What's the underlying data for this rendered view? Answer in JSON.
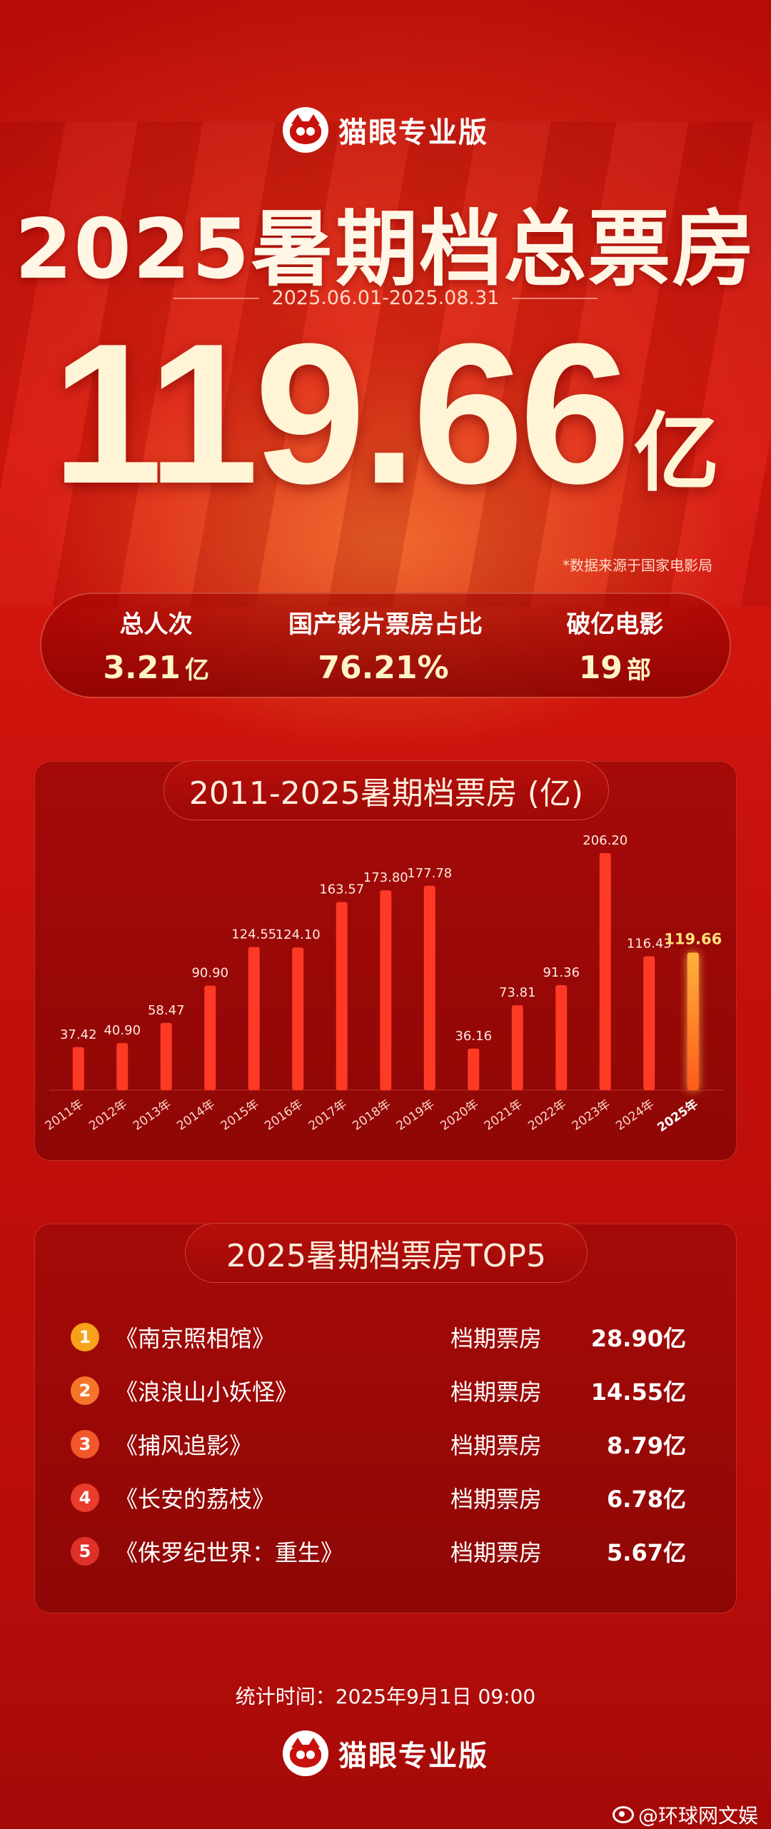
{
  "brand": {
    "name": "猫眼专业版",
    "logo_icon": "cat-logo-icon"
  },
  "header": {
    "title": "2025暑期档总票房",
    "date_range": "2025.06.01-2025.08.31",
    "total_value": "119.66",
    "total_unit": "亿",
    "source_note": "*数据来源于国家电影局"
  },
  "stats": [
    {
      "label": "总人次",
      "value": "3.21",
      "unit": "亿"
    },
    {
      "label": "国产影片票房占比",
      "value": "76.21%",
      "unit": ""
    },
    {
      "label": "破亿电影",
      "value": "19",
      "unit": "部"
    }
  ],
  "chart_data": {
    "type": "bar",
    "title": "2011-2025暑期档票房 (亿)",
    "categories": [
      "2011年",
      "2012年",
      "2013年",
      "2014年",
      "2015年",
      "2016年",
      "2017年",
      "2018年",
      "2019年",
      "2020年",
      "2021年",
      "2022年",
      "2023年",
      "2024年",
      "2025年"
    ],
    "values": [
      37.42,
      40.9,
      58.47,
      90.9,
      124.55,
      124.1,
      163.57,
      173.8,
      177.78,
      36.16,
      73.81,
      91.36,
      206.2,
      116.43,
      119.66
    ],
    "value_labels": [
      "37.42",
      "40.90",
      "58.47",
      "90.90",
      "124.55",
      "124.10",
      "163.57",
      "173.80",
      "177.78",
      "36.16",
      "73.81",
      "91.36",
      "206.20",
      "116.43",
      "119.66"
    ],
    "highlight_index": 14,
    "colors": {
      "bar": "#ff3a24",
      "highlight": "#ffb13b",
      "highlight_label": "#ffe27a"
    },
    "grid": false,
    "ylim": [
      0,
      206.2
    ]
  },
  "top5": {
    "title": "2025暑期档票房TOP5",
    "rows": [
      {
        "rank": "1",
        "title": "《南京照相馆》",
        "label": "档期票房",
        "value": "28.90亿",
        "color": "#f7a21b"
      },
      {
        "rank": "2",
        "title": "《浪浪山小妖怪》",
        "label": "档期票房",
        "value": "14.55亿",
        "color": "#f5762a"
      },
      {
        "rank": "3",
        "title": "《捕风追影》",
        "label": "档期票房",
        "value": "8.79亿",
        "color": "#f2562b"
      },
      {
        "rank": "4",
        "title": "《长安的荔枝》",
        "label": "档期票房",
        "value": "6.78亿",
        "color": "#ea3c2b"
      },
      {
        "rank": "5",
        "title": "《侏罗纪世界：重生》",
        "label": "档期票房",
        "value": "5.67亿",
        "color": "#e0302a"
      }
    ]
  },
  "footer": {
    "stat_time": "统计时间：2025年9月1日  09:00",
    "brand_name": "猫眼专业版",
    "watermark": "@环球网文娱",
    "watermark_icon": "weibo-icon"
  }
}
